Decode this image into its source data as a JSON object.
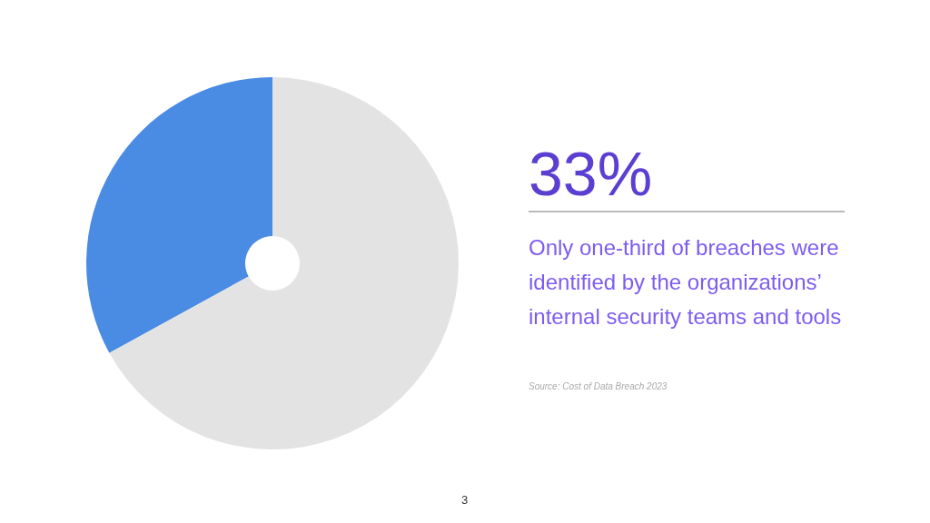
{
  "chart_data": {
    "type": "donut",
    "categories": [
      null,
      null
    ],
    "values": [
      33,
      67
    ],
    "colors": [
      "#4a8be3",
      "#e3e3e3"
    ],
    "legend": false,
    "annotations": [
      "33%",
      "Only one-third of breaches were identified by the organizations’ internal security teams and tools",
      "Source: Cost of Data Breach 2023",
      "3"
    ]
  }
}
